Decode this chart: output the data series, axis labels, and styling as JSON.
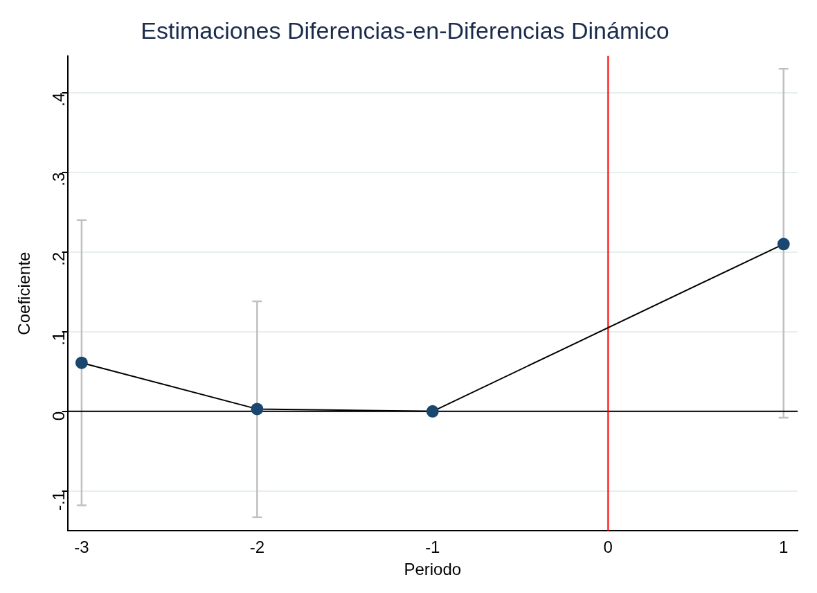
{
  "chart_data": {
    "type": "line",
    "title": "Estimaciones Diferencias-en-Diferencias Dinámico",
    "xlabel": "Periodo",
    "ylabel": "Coeficiente",
    "x": [
      -3,
      -2,
      -1,
      1
    ],
    "series": [
      {
        "color": "#1a476f",
        "values": [
          0.061,
          0.003,
          0,
          0.21
        ],
        "errors": [
          [
            -0.118,
            0.24
          ],
          [
            -0.133,
            0.138
          ],
          null,
          [
            -0.008,
            0.43
          ]
        ]
      }
    ],
    "xlim": [
      -3.08,
      1.08
    ],
    "xticks": [
      -3,
      -2,
      -1,
      0,
      1
    ],
    "ylim": [
      -0.15,
      0.446
    ],
    "yticks": [
      {
        "value": -0.1,
        "label": "-.1"
      },
      0,
      {
        "value": 0.1,
        "label": ".1"
      },
      {
        "value": 0.2,
        "label": ".2"
      },
      {
        "value": 0.3,
        "label": ".3"
      },
      {
        "value": 0.4,
        "label": ".4"
      }
    ],
    "ref_lines": [
      {
        "axis": "y",
        "value": 0,
        "color": "#000000"
      },
      {
        "axis": "x",
        "value": 0,
        "color": "#ff0000"
      }
    ],
    "grid": "y",
    "marker": "circle",
    "line_style": "solid",
    "legend": false
  }
}
